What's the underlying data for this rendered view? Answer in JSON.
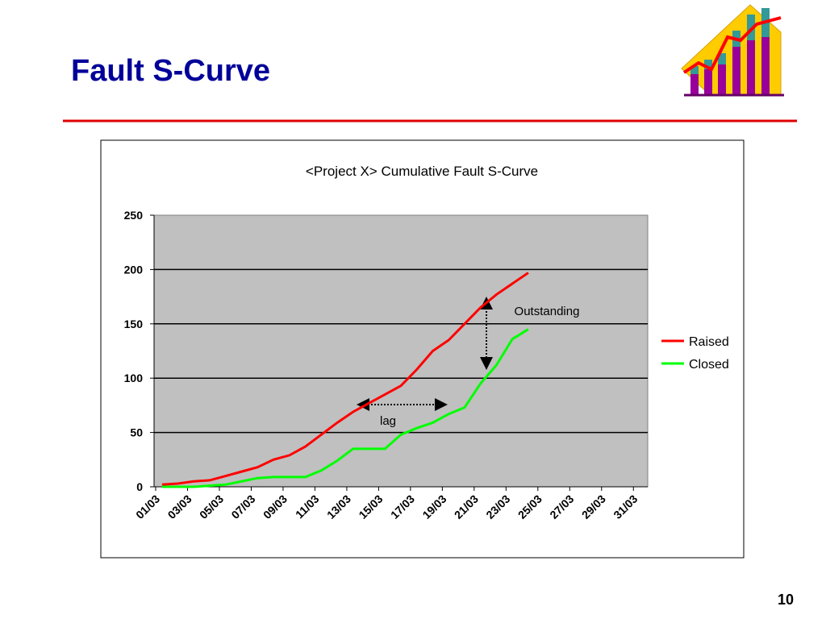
{
  "title": "Fault S-Curve",
  "page_number": "10",
  "chart_data": {
    "type": "line",
    "title": "<Project X> Cumulative Fault S-Curve",
    "categories": [
      "01/03",
      null,
      "03/03",
      null,
      "05/03",
      null,
      "07/03",
      null,
      "09/03",
      null,
      "11/03",
      null,
      "13/03",
      null,
      "15/03",
      null,
      "17/03",
      null,
      "19/03",
      null,
      "21/03",
      null,
      "23/03",
      null,
      "25/03",
      null,
      "27/03",
      null,
      "29/03",
      null,
      "31/03"
    ],
    "series": [
      {
        "name": "Raised",
        "color": "#ff0000",
        "values": [
          2,
          3,
          5,
          6,
          10,
          14,
          18,
          25,
          29,
          37,
          48,
          59,
          69,
          77,
          85,
          93,
          108,
          125,
          135,
          150,
          165,
          177,
          187,
          197,
          null,
          null,
          null,
          null,
          null,
          null,
          null
        ]
      },
      {
        "name": "Closed",
        "color": "#00ff00",
        "values": [
          0,
          0,
          0,
          1,
          2,
          5,
          8,
          9,
          9,
          9,
          15,
          24,
          35,
          35,
          35,
          48,
          54,
          59,
          67,
          73,
          95,
          112,
          136,
          145,
          null,
          null,
          null,
          null,
          null,
          null,
          null
        ]
      }
    ],
    "ylim": [
      0,
      250
    ],
    "yticks": [
      0,
      50,
      100,
      150,
      200,
      250
    ],
    "grid": true,
    "legend": "right",
    "annotations": [
      "Outstanding",
      "lag"
    ]
  }
}
